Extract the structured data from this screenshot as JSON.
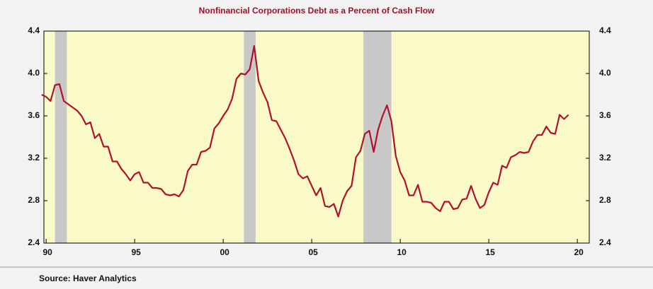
{
  "chart_data": {
    "type": "line",
    "title": "Nonfinancial Corporations Debt as a Percent of Cash Flow",
    "source": "Source:  Haver Analytics",
    "xlim": [
      1989.875,
      2020.675
    ],
    "xticks": [
      {
        "value": 1990,
        "label": "90"
      },
      {
        "value": 1995,
        "label": "95"
      },
      {
        "value": 2000,
        "label": "00"
      },
      {
        "value": 2005,
        "label": "05"
      },
      {
        "value": 2010,
        "label": "10"
      },
      {
        "value": 2015,
        "label": "15"
      },
      {
        "value": 2020,
        "label": "20"
      }
    ],
    "ylim": [
      2.4,
      4.4
    ],
    "yticks": [
      2.4,
      2.8,
      3.2,
      3.6,
      {
        "value": 4,
        "label": "4.0"
      },
      4.4
    ],
    "recessions": [
      [
        1990.5,
        1991.17
      ],
      [
        2001.17,
        2001.83
      ],
      [
        2007.92,
        2009.5
      ]
    ],
    "recession_color": "#c8c8c8",
    "plot_background": "#fafac8",
    "series": [
      {
        "name": "Nonfinancial Corporations Debt as a Percent of Cash Flow",
        "color": "#b0122e",
        "x": [
          1989.75,
          1990,
          1990.25,
          1990.5,
          1990.75,
          1991,
          1991.25,
          1991.5,
          1991.75,
          1992,
          1992.25,
          1992.5,
          1992.75,
          1993,
          1993.25,
          1993.5,
          1993.75,
          1994,
          1994.25,
          1994.5,
          1994.75,
          1995,
          1995.25,
          1995.5,
          1995.75,
          1996,
          1996.25,
          1996.5,
          1996.75,
          1997,
          1997.25,
          1997.5,
          1997.75,
          1998,
          1998.25,
          1998.5,
          1998.75,
          1999,
          1999.25,
          1999.5,
          1999.75,
          2000,
          2000.25,
          2000.5,
          2000.75,
          2001,
          2001.25,
          2001.5,
          2001.75,
          2002,
          2002.25,
          2002.5,
          2002.75,
          2003,
          2003.25,
          2003.5,
          2003.75,
          2004,
          2004.25,
          2004.5,
          2004.75,
          2005,
          2005.25,
          2005.5,
          2005.75,
          2006,
          2006.25,
          2006.5,
          2006.75,
          2007,
          2007.25,
          2007.5,
          2007.75,
          2008,
          2008.25,
          2008.5,
          2008.75,
          2009,
          2009.25,
          2009.5,
          2009.75,
          2010,
          2010.25,
          2010.5,
          2010.75,
          2011,
          2011.25,
          2011.5,
          2011.75,
          2012,
          2012.25,
          2012.5,
          2012.75,
          2013,
          2013.25,
          2013.5,
          2013.75,
          2014,
          2014.25,
          2014.5,
          2014.75,
          2015,
          2015.25,
          2015.5,
          2015.75,
          2016,
          2016.25,
          2016.5,
          2016.75,
          2017,
          2017.25,
          2017.5,
          2017.75,
          2018,
          2018.25,
          2018.5,
          2018.75,
          2019,
          2019.25,
          2019.5
        ],
        "values": [
          3.8,
          3.78,
          3.74,
          3.89,
          3.9,
          3.74,
          3.71,
          3.68,
          3.65,
          3.6,
          3.52,
          3.54,
          3.39,
          3.43,
          3.31,
          3.31,
          3.17,
          3.17,
          3.1,
          3.05,
          2.99,
          3.05,
          3.07,
          2.97,
          2.97,
          2.92,
          2.92,
          2.91,
          2.86,
          2.85,
          2.86,
          2.84,
          2.9,
          3.08,
          3.14,
          3.14,
          3.26,
          3.27,
          3.3,
          3.48,
          3.53,
          3.6,
          3.66,
          3.76,
          3.95,
          4.0,
          3.99,
          4.04,
          4.26,
          3.93,
          3.82,
          3.73,
          3.56,
          3.55,
          3.47,
          3.39,
          3.29,
          3.18,
          3.05,
          3.01,
          3.03,
          2.94,
          2.85,
          2.92,
          2.75,
          2.74,
          2.77,
          2.65,
          2.8,
          2.89,
          2.94,
          3.21,
          3.27,
          3.43,
          3.46,
          3.26,
          3.47,
          3.6,
          3.7,
          3.55,
          3.22,
          3.07,
          2.99,
          2.85,
          2.85,
          2.95,
          2.79,
          2.79,
          2.78,
          2.73,
          2.7,
          2.79,
          2.79,
          2.72,
          2.73,
          2.81,
          2.82,
          2.94,
          2.82,
          2.73,
          2.76,
          2.88,
          2.97,
          2.95,
          3.13,
          3.11,
          3.21,
          3.23,
          3.26,
          3.25,
          3.26,
          3.36,
          3.42,
          3.42,
          3.5,
          3.44,
          3.43,
          3.61,
          3.57,
          3.61
        ]
      }
    ]
  }
}
